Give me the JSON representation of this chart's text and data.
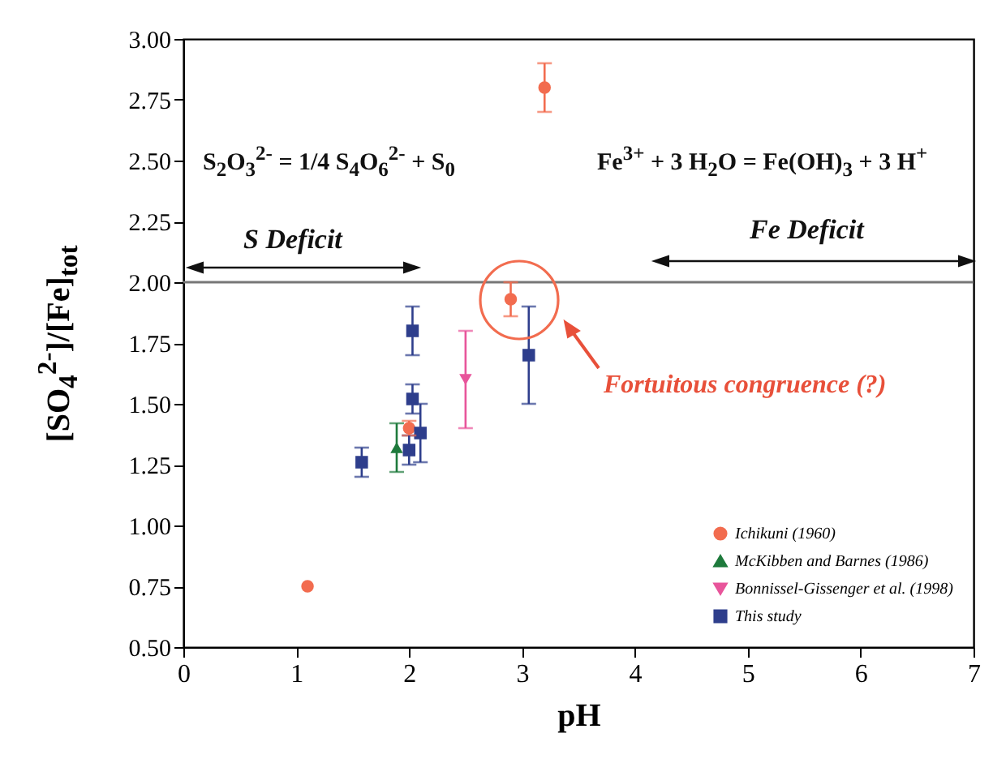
{
  "chart_data": {
    "type": "scatter",
    "xlabel": "pH",
    "ylabel": "[SO$_{4}$$^{2-}$]/[Fe]$_{tot}$",
    "xlim": [
      0,
      7
    ],
    "xticks": [
      0,
      1,
      2,
      3,
      4,
      5,
      6,
      7
    ],
    "ylim": [
      0.5,
      3
    ],
    "yticks": [
      {
        "value": 0.5,
        "label": "0.50"
      },
      {
        "value": 0.75,
        "label": "0.75"
      },
      {
        "value": 1,
        "label": "1.00"
      },
      {
        "value": 1.25,
        "label": "1.25"
      },
      {
        "value": 1.5,
        "label": "1.50"
      },
      {
        "value": 1.75,
        "label": "1.75"
      },
      {
        "value": 2,
        "label": "2.00"
      },
      {
        "value": 2.25,
        "label": "2.25"
      },
      {
        "value": 2.5,
        "label": "2.50"
      },
      {
        "value": 2.75,
        "label": "2.75"
      },
      {
        "value": 3,
        "label": "3.00"
      }
    ],
    "grid": false,
    "legend": "bottom right",
    "series": [
      {
        "name": "Ichikuni (1960)",
        "color": "#f26c4f",
        "marker": "circle",
        "x": [
          1.1,
          2.0,
          2.9,
          3.2
        ],
        "values": [
          0.75,
          1.4,
          1.93,
          2.8
        ],
        "errors": [
          null,
          0.03,
          0.07,
          0.1
        ]
      },
      {
        "name": "McKibben and Barnes (1986)",
        "color": "#1e7a3c",
        "marker": "triangle",
        "x": [
          1.89
        ],
        "values": [
          1.32
        ],
        "errors": [
          0.1
        ]
      },
      {
        "name": "Bonnissel-Gissenger et al. (1998)",
        "color": "#e8559b",
        "marker": "triangle-down",
        "x": [
          2.5
        ],
        "values": [
          1.6
        ],
        "errors": [
          0.2
        ]
      },
      {
        "name": "This study",
        "color": "#2e3e8c",
        "marker": "square",
        "x": [
          1.58,
          2.03,
          2.03,
          2.0,
          2.1,
          3.06
        ],
        "values": [
          1.26,
          1.8,
          1.52,
          1.31,
          1.38,
          1.7
        ],
        "errors": [
          0.06,
          0.1,
          0.06,
          0.06,
          0.12,
          0.2
        ]
      }
    ],
    "ref_lines": [
      {
        "axis": "y",
        "value": 2,
        "color": "#777777"
      }
    ],
    "annotations": [
      "S$_{2}$O$_{3}$$^{2-}$ = 1/4 S$_{4}$O$_{6}$$^{2-}$ + S$_{0}$",
      "Fe$^{3+}$ + 3 H$_{2}$O = Fe(OH)$_{3}$ + 3 H$^{+}$",
      "S Deficit",
      "Fe Deficit",
      "Fortuitous congruence (?)"
    ]
  }
}
